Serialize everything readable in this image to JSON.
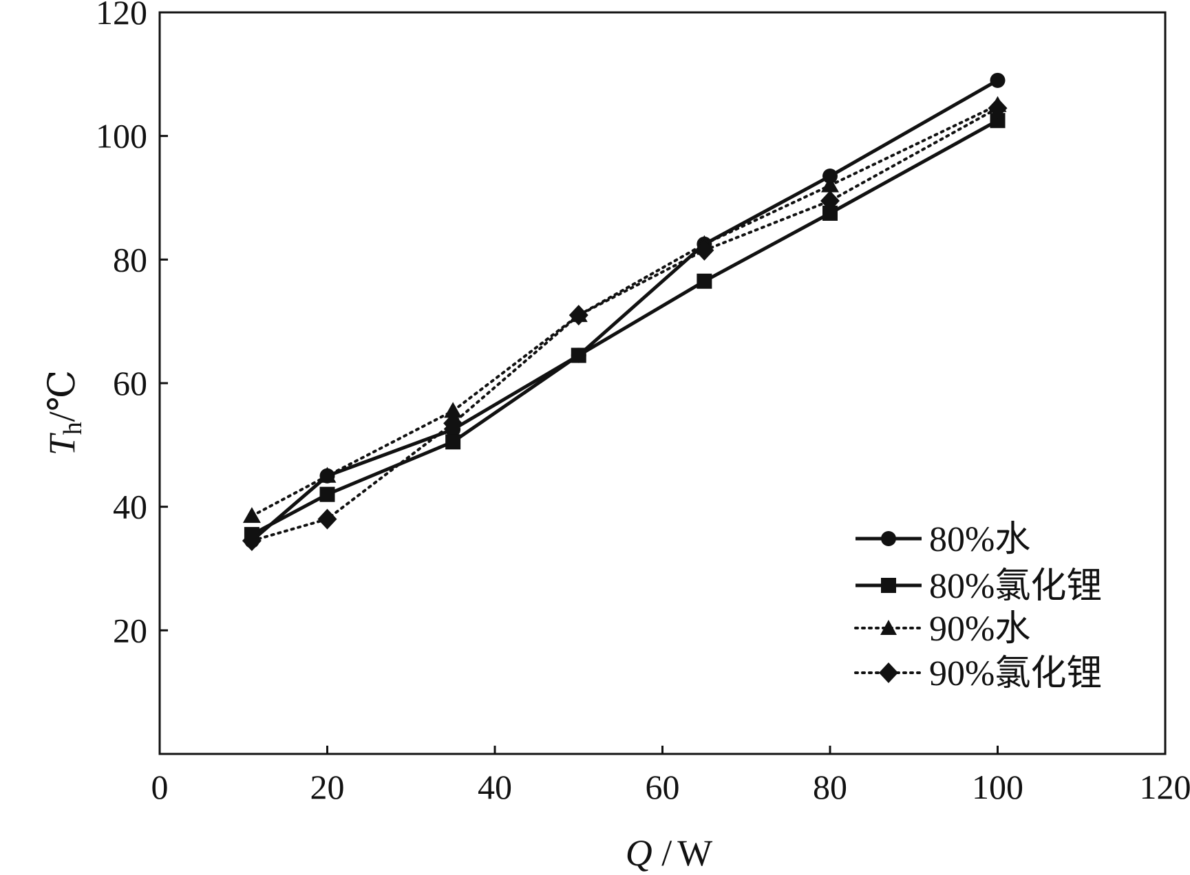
{
  "chart_data": {
    "type": "line",
    "xlabel": {
      "var": "Q",
      "sep": " /",
      "unit": "W"
    },
    "ylabel": {
      "var": "T",
      "sub": "h",
      "unit": "/℃"
    },
    "xlim": [
      0,
      120
    ],
    "ylim": [
      0,
      120
    ],
    "xticks": [
      0,
      20,
      40,
      60,
      80,
      100,
      120
    ],
    "yticks": [
      20,
      40,
      60,
      80,
      100,
      120
    ],
    "xtick_labels": [
      "0",
      "20",
      "40",
      "60",
      "80",
      "100",
      "120"
    ],
    "ytick_labels": [
      "20",
      "40",
      "60",
      "80",
      "100",
      "120"
    ],
    "grid": false,
    "legend_position": "bottom-right",
    "series": [
      {
        "name": "80%水",
        "marker": "circle",
        "line": "solid",
        "x": [
          11,
          20,
          35,
          50,
          65,
          80,
          100
        ],
        "y": [
          34.5,
          45,
          52.5,
          64.5,
          82.5,
          93.5,
          109
        ]
      },
      {
        "name": "80%氯化锂",
        "marker": "square",
        "line": "solid",
        "x": [
          11,
          20,
          35,
          50,
          65,
          80,
          100
        ],
        "y": [
          35.5,
          42,
          50.5,
          64.5,
          76.5,
          87.5,
          102.5
        ]
      },
      {
        "name": "90%水",
        "marker": "triangle",
        "line": "dotted",
        "x": [
          11,
          20,
          35,
          50,
          65,
          80,
          100
        ],
        "y": [
          38.5,
          45,
          55.5,
          71,
          82.5,
          92,
          105
        ]
      },
      {
        "name": "90%氯化锂",
        "marker": "diamond",
        "line": "dotted",
        "x": [
          11,
          20,
          35,
          50,
          65,
          80,
          100
        ],
        "y": [
          34.5,
          38,
          53.5,
          71,
          81.5,
          89.5,
          104.5
        ]
      }
    ]
  }
}
